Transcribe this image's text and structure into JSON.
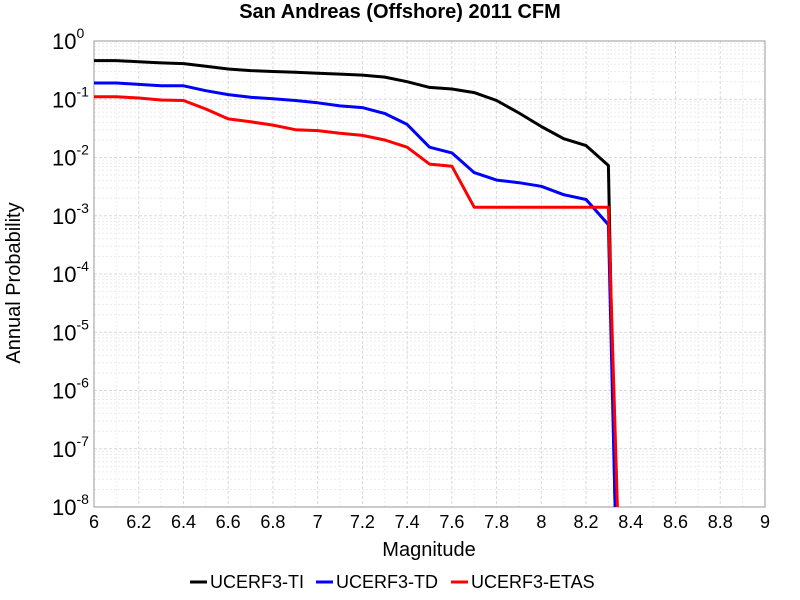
{
  "chart_data": {
    "type": "line",
    "title": "San Andreas (Offshore) 2011 CFM",
    "xlabel": "Magnitude",
    "ylabel": "Annual Probability",
    "xlim": [
      6,
      9
    ],
    "ylim": [
      1e-08,
      1
    ],
    "yscale": "log",
    "grid": true,
    "legend_position": "bottom",
    "x_ticks": [
      "6",
      "6.2",
      "6.4",
      "6.6",
      "6.8",
      "7",
      "7.2",
      "7.4",
      "7.6",
      "7.8",
      "8",
      "8.2",
      "8.4",
      "8.6",
      "8.8",
      "9"
    ],
    "y_ticks": [
      {
        "base": "10",
        "exp": "0"
      },
      {
        "base": "10",
        "exp": "-1"
      },
      {
        "base": "10",
        "exp": "-2"
      },
      {
        "base": "10",
        "exp": "-3"
      },
      {
        "base": "10",
        "exp": "-4"
      },
      {
        "base": "10",
        "exp": "-5"
      },
      {
        "base": "10",
        "exp": "-6"
      },
      {
        "base": "10",
        "exp": "-7"
      },
      {
        "base": "10",
        "exp": "-8"
      }
    ],
    "series": [
      {
        "name": "UCERF3-TI",
        "color": "#000000",
        "x": [
          6.0,
          6.1,
          6.2,
          6.3,
          6.4,
          6.5,
          6.6,
          6.7,
          6.8,
          6.9,
          7.0,
          7.1,
          7.2,
          7.3,
          7.4,
          7.5,
          7.6,
          7.7,
          7.8,
          7.9,
          8.0,
          8.1,
          8.2,
          8.3,
          8.33
        ],
        "y": [
          0.46,
          0.46,
          0.44,
          0.42,
          0.41,
          0.37,
          0.33,
          0.31,
          0.3,
          0.29,
          0.28,
          0.27,
          0.26,
          0.24,
          0.2,
          0.16,
          0.15,
          0.13,
          0.095,
          0.058,
          0.034,
          0.021,
          0.016,
          0.0073,
          1e-08
        ]
      },
      {
        "name": "UCERF3-TD",
        "color": "#0000ff",
        "x": [
          6.0,
          6.1,
          6.2,
          6.3,
          6.4,
          6.5,
          6.6,
          6.7,
          6.8,
          6.9,
          7.0,
          7.1,
          7.2,
          7.3,
          7.4,
          7.5,
          7.6,
          7.7,
          7.8,
          7.9,
          8.0,
          8.1,
          8.2,
          8.3,
          8.33
        ],
        "y": [
          0.19,
          0.19,
          0.18,
          0.17,
          0.17,
          0.14,
          0.12,
          0.108,
          0.102,
          0.095,
          0.087,
          0.077,
          0.072,
          0.057,
          0.037,
          0.015,
          0.012,
          0.0055,
          0.0041,
          0.0037,
          0.0032,
          0.0023,
          0.0019,
          0.0007,
          1e-08
        ]
      },
      {
        "name": "UCERF3-ETAS",
        "color": "#ff0000",
        "x": [
          6.0,
          6.1,
          6.2,
          6.3,
          6.4,
          6.5,
          6.6,
          6.7,
          6.8,
          6.9,
          7.0,
          7.1,
          7.2,
          7.3,
          7.4,
          7.5,
          7.6,
          7.7,
          7.8,
          7.9,
          8.0,
          8.1,
          8.2,
          8.3,
          8.34
        ],
        "y": [
          0.11,
          0.11,
          0.105,
          0.097,
          0.095,
          0.068,
          0.046,
          0.041,
          0.036,
          0.03,
          0.029,
          0.026,
          0.024,
          0.02,
          0.015,
          0.0077,
          0.0071,
          0.0014,
          0.0014,
          0.0014,
          0.0014,
          0.0014,
          0.0014,
          0.0014,
          1e-08
        ]
      }
    ]
  }
}
